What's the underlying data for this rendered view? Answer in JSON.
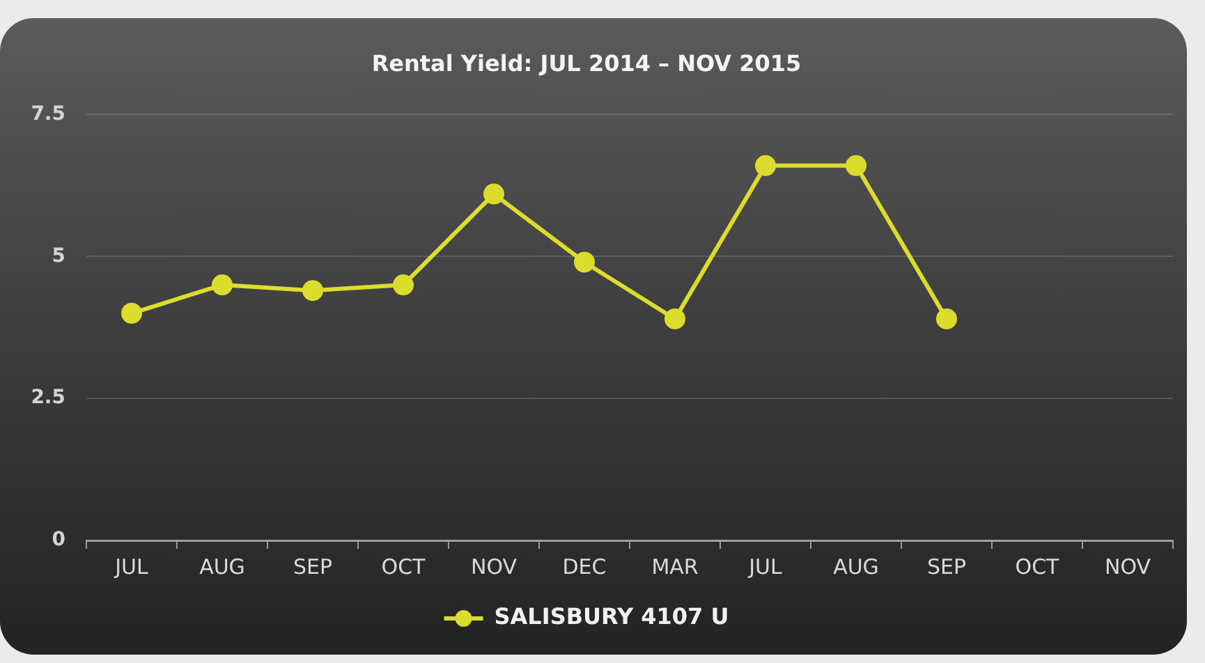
{
  "chart_data": {
    "type": "line",
    "title": "Rental Yield: JUL 2014 – NOV 2015",
    "categories": [
      "JUL",
      "AUG",
      "SEP",
      "OCT",
      "NOV",
      "DEC",
      "MAR",
      "JUL",
      "AUG",
      "SEP",
      "OCT",
      "NOV"
    ],
    "series": [
      {
        "name": "SALISBURY 4107 U",
        "color": "#dcdc2c",
        "values": [
          4.0,
          4.5,
          4.4,
          4.5,
          6.1,
          4.9,
          3.9,
          6.6,
          6.6,
          3.9,
          null,
          null
        ]
      }
    ],
    "ylim": [
      0,
      7.5
    ],
    "yticks": [
      0,
      2.5,
      5,
      7.5
    ],
    "grid": "y",
    "legend": "bottom",
    "marker": "circle",
    "line_style": "solid"
  }
}
